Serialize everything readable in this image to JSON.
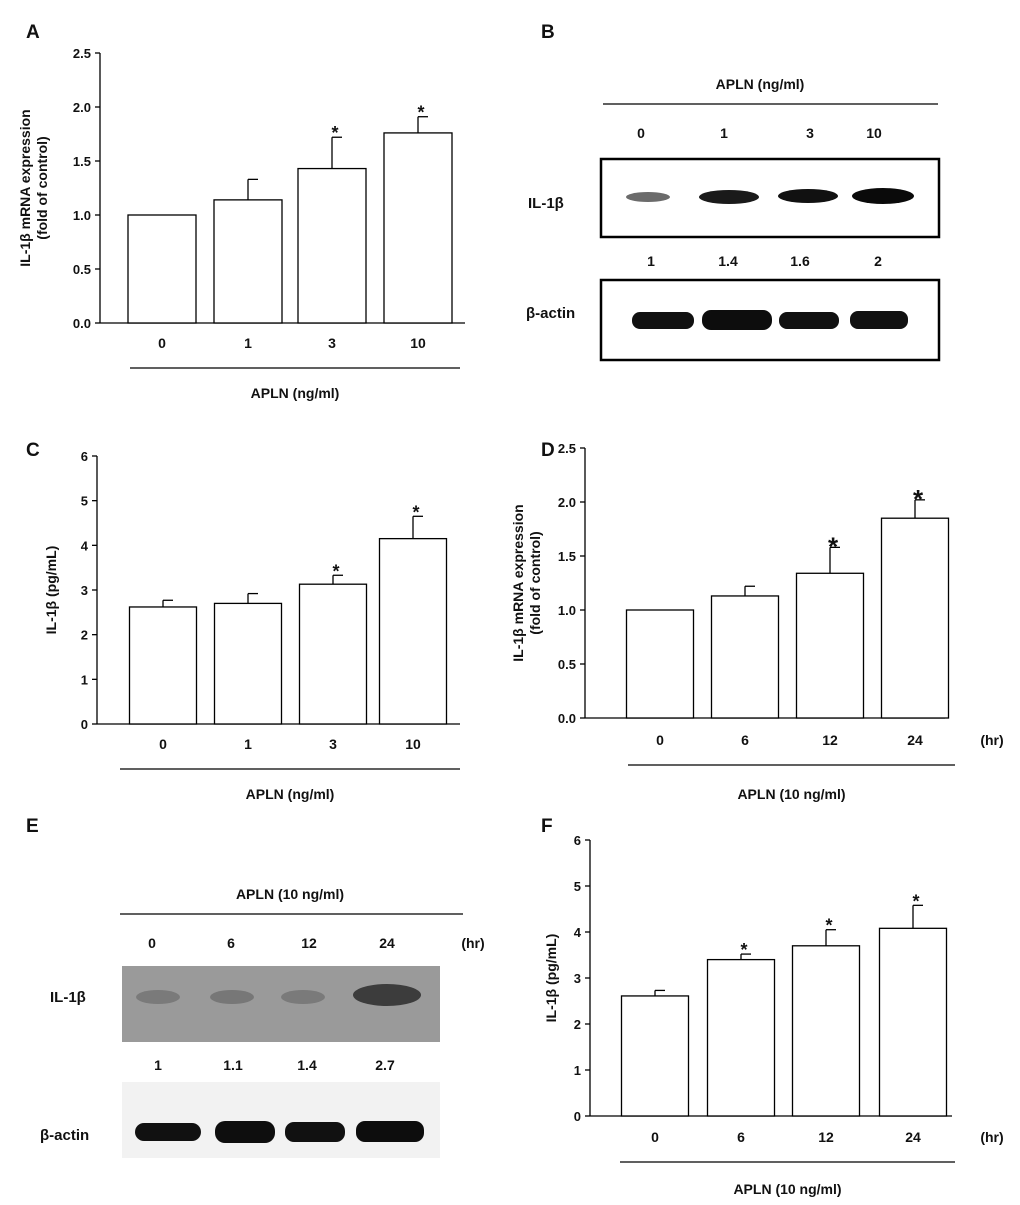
{
  "panels": {
    "A": "A",
    "B": "B",
    "C": "C",
    "D": "D",
    "E": "E",
    "F": "F"
  },
  "blot_b": {
    "header": "APLN (ng/ml)",
    "lanes": [
      "0",
      "1",
      "3",
      "10"
    ],
    "protein": "IL-1β",
    "quant": [
      "1",
      "1.4",
      "1.6",
      "2"
    ],
    "control": "β-actin"
  },
  "blot_e": {
    "header": "APLN (10 ng/ml)",
    "lanes": [
      "0",
      "6",
      "12",
      "24"
    ],
    "unit": "(hr)",
    "protein": "IL-1β",
    "quant": [
      "1",
      "1.1",
      "1.4",
      "2.7"
    ],
    "control": "β-actin"
  },
  "chart_data": [
    {
      "panel": "A",
      "type": "bar",
      "ylabel": [
        "IL-1β mRNA expression",
        "(fold of control)"
      ],
      "xlabel": "APLN (ng/ml)",
      "xunit": "",
      "categories": [
        "0",
        "1",
        "3",
        "10"
      ],
      "values": [
        1.0,
        1.14,
        1.43,
        1.76
      ],
      "errors": [
        0,
        0.19,
        0.29,
        0.15
      ],
      "significant": [
        false,
        false,
        true,
        true
      ],
      "ylim": [
        0,
        2.5
      ],
      "yticks": [
        "0.0",
        "0.5",
        "1.0",
        "1.5",
        "2.0",
        "2.5"
      ]
    },
    {
      "panel": "C",
      "type": "bar",
      "ylabel": [
        "IL-1β (pg/mL)"
      ],
      "xlabel": "APLN (ng/ml)",
      "xunit": "",
      "categories": [
        "0",
        "1",
        "3",
        "10"
      ],
      "values": [
        2.62,
        2.7,
        3.13,
        4.15
      ],
      "errors": [
        0.15,
        0.22,
        0.2,
        0.5
      ],
      "significant": [
        false,
        false,
        true,
        true
      ],
      "ylim": [
        0,
        6
      ],
      "yticks": [
        "0",
        "1",
        "2",
        "3",
        "4",
        "5",
        "6"
      ]
    },
    {
      "panel": "D",
      "type": "bar",
      "ylabel": [
        "IL-1β mRNA expression",
        "(fold of control)"
      ],
      "xlabel": "APLN (10 ng/ml)",
      "xunit": "(hr)",
      "categories": [
        "0",
        "6",
        "12",
        "24"
      ],
      "values": [
        1.0,
        1.13,
        1.34,
        1.85
      ],
      "errors": [
        0,
        0.09,
        0.24,
        0.17
      ],
      "significant": [
        false,
        false,
        true,
        true
      ],
      "ylim": [
        0,
        2.5
      ],
      "yticks": [
        "0.0",
        "0.5",
        "1.0",
        "1.5",
        "2.0",
        "2.5"
      ]
    },
    {
      "panel": "F",
      "type": "bar",
      "ylabel": [
        "IL-1β (pg/mL)"
      ],
      "xlabel": "APLN (10 ng/ml)",
      "xunit": "(hr)",
      "categories": [
        "0",
        "6",
        "12",
        "24"
      ],
      "values": [
        2.61,
        3.4,
        3.7,
        4.08
      ],
      "errors": [
        0.12,
        0.12,
        0.35,
        0.5
      ],
      "significant": [
        false,
        true,
        true,
        true
      ],
      "ylim": [
        0,
        6
      ],
      "yticks": [
        "0",
        "1",
        "2",
        "3",
        "4",
        "5",
        "6"
      ]
    }
  ]
}
